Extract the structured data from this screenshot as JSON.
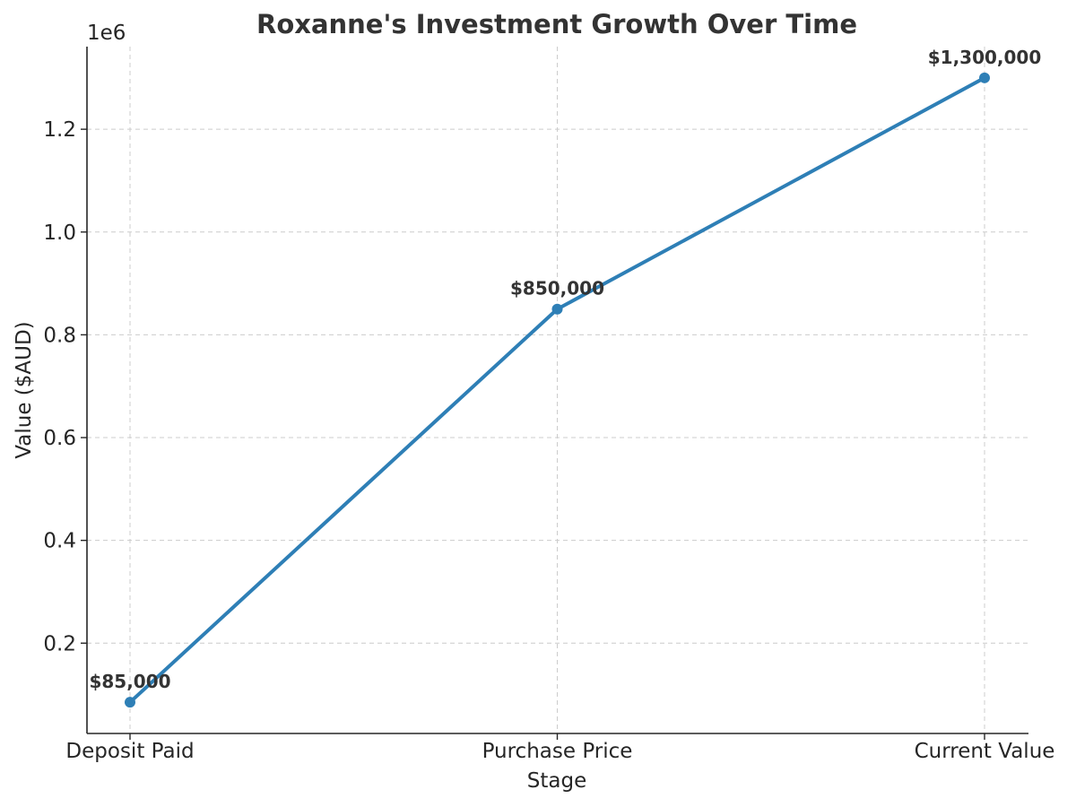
{
  "chart_data": {
    "type": "line",
    "title": "Roxanne's Investment Growth Over Time",
    "xlabel": "Stage",
    "ylabel": "Value ($AUD)",
    "y_offset_label": "1e6",
    "categories": [
      "Deposit Paid",
      "Purchase Price",
      "Current Value"
    ],
    "values": [
      85000,
      850000,
      1300000
    ],
    "data_labels": [
      "$85,000",
      "$850,000",
      "$1,300,000"
    ],
    "yticks": [
      0.2,
      0.4,
      0.6,
      0.8,
      1.0,
      1.2
    ],
    "ytick_labels": [
      "0.2",
      "0.4",
      "0.6",
      "0.8",
      "1.0",
      "1.2"
    ],
    "ytick_scale": 1000000,
    "ylim": [
      24250,
      1360750
    ],
    "grid": true,
    "line_color": "#2e7fb6",
    "marker_color": "#2e7fb6"
  }
}
